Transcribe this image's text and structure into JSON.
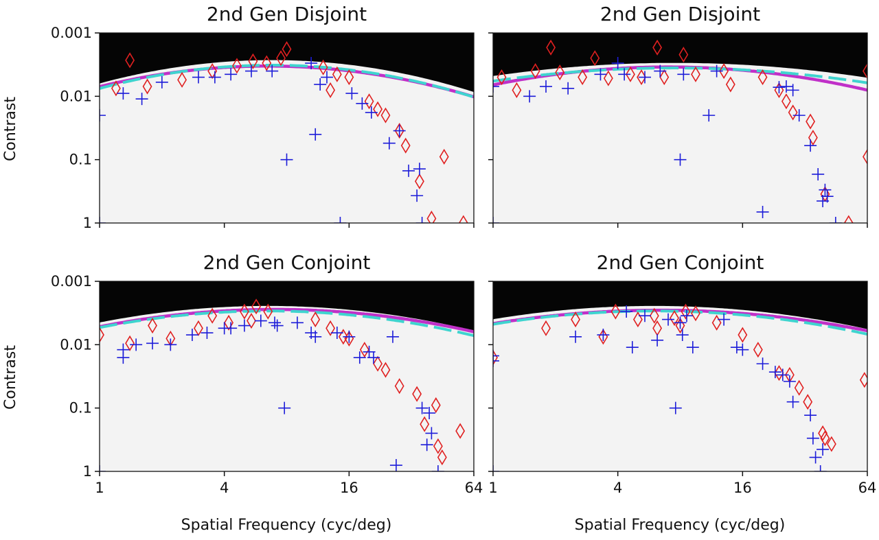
{
  "figure": {
    "ylabel": "Contrast",
    "xlabel": "Spatial Frequency (cyc/deg)"
  },
  "chart_data": [
    {
      "type": "scatter",
      "title": "2nd Gen Disjoint",
      "x_scale": "log2",
      "y_scale": "log10-inverted",
      "xlim": [
        1,
        64
      ],
      "ylim": [
        1,
        0.001
      ],
      "x_ticks": [
        "1",
        "4",
        "16",
        "64"
      ],
      "y_ticks": [
        "0.001",
        "0.01",
        "0.1",
        "1"
      ],
      "background": "estimated contrast sensitivity probability map (white = seen, black = not seen)",
      "series": [
        {
          "marker": "diamond",
          "color": "#e02020",
          "points": [
            [
              1.2,
              0.0075
            ],
            [
              1.4,
              0.0027
            ],
            [
              1.7,
              0.007
            ],
            [
              2.5,
              0.0055
            ],
            [
              3.5,
              0.004
            ],
            [
              4.6,
              0.0033
            ],
            [
              5.5,
              0.0028
            ],
            [
              6.4,
              0.003
            ],
            [
              7.5,
              0.0025
            ],
            [
              8,
              0.0018
            ],
            [
              12,
              0.0035
            ],
            [
              13,
              0.008
            ],
            [
              14,
              0.0045
            ],
            [
              16,
              0.005
            ],
            [
              20,
              0.012
            ],
            [
              22,
              0.016
            ],
            [
              24,
              0.02
            ],
            [
              28,
              0.035
            ],
            [
              30,
              0.06
            ],
            [
              35,
              0.22
            ],
            [
              40,
              0.85
            ],
            [
              46,
              0.09
            ],
            [
              57,
              1.0
            ]
          ]
        },
        {
          "marker": "plus",
          "color": "#1c1cd9",
          "points": [
            [
              1,
              0.02
            ],
            [
              1,
              1.0
            ],
            [
              1.3,
              0.009
            ],
            [
              1.6,
              0.011
            ],
            [
              2,
              0.006
            ],
            [
              3,
              0.005
            ],
            [
              3.6,
              0.005
            ],
            [
              4.3,
              0.0045
            ],
            [
              5.4,
              0.004
            ],
            [
              6.8,
              0.004
            ],
            [
              8,
              0.1
            ],
            [
              10.5,
              0.003
            ],
            [
              11,
              0.04
            ],
            [
              11.6,
              0.0065
            ],
            [
              12.5,
              0.005
            ],
            [
              14.5,
              1.0
            ],
            [
              16.5,
              0.009
            ],
            [
              18.5,
              0.013
            ],
            [
              20.5,
              0.018
            ],
            [
              25,
              0.055
            ],
            [
              28,
              0.035
            ],
            [
              31,
              0.15
            ],
            [
              34,
              0.37
            ],
            [
              35,
              0.14
            ],
            [
              36,
              1.0
            ]
          ]
        }
      ],
      "fits": [
        {
          "name": "solid",
          "color": "#c030c8",
          "style": "solid",
          "peak_freq": 6.5,
          "peak_sens": 300,
          "bandwidth_oct": 5.2,
          "truncation_log": 1.0
        },
        {
          "name": "dashed",
          "color": "#3fd4cf",
          "style": "dashed",
          "peak_freq": 6.8,
          "peak_sens": 310,
          "bandwidth_oct": 5.0,
          "truncation_log": 1.05
        }
      ]
    },
    {
      "type": "scatter",
      "title": "2nd Gen Disjoint",
      "x_scale": "log2",
      "y_scale": "log10-inverted",
      "xlim": [
        1,
        64
      ],
      "ylim": [
        1,
        0.001
      ],
      "x_ticks": [
        "1",
        "4",
        "16",
        "64"
      ],
      "y_ticks": [
        "0.001",
        "0.01",
        "0.1",
        "1"
      ],
      "background": "estimated contrast sensitivity probability map (white = seen, black = not seen)",
      "series": [
        {
          "marker": "diamond",
          "color": "#e02020",
          "points": [
            [
              1.1,
              0.005
            ],
            [
              1.3,
              0.008
            ],
            [
              1.6,
              0.004
            ],
            [
              1.9,
              0.0017
            ],
            [
              2.1,
              0.0042
            ],
            [
              2.7,
              0.005
            ],
            [
              3.1,
              0.0025
            ],
            [
              3.6,
              0.0052
            ],
            [
              4.6,
              0.0045
            ],
            [
              5.2,
              0.005
            ],
            [
              6.2,
              0.0017
            ],
            [
              6.7,
              0.005
            ],
            [
              8.3,
              0.0022
            ],
            [
              9.5,
              0.0045
            ],
            [
              13,
              0.004
            ],
            [
              14,
              0.0065
            ],
            [
              20,
              0.005
            ],
            [
              24,
              0.008
            ],
            [
              26,
              0.012
            ],
            [
              28,
              0.018
            ],
            [
              34,
              0.025
            ],
            [
              35,
              0.045
            ],
            [
              40,
              0.35
            ],
            [
              52,
              1.0
            ],
            [
              64,
              0.004
            ],
            [
              64,
              0.09
            ]
          ]
        },
        {
          "marker": "plus",
          "color": "#1c1cd9",
          "points": [
            [
              1,
              0.007
            ],
            [
              1,
              1.0
            ],
            [
              1.5,
              0.01
            ],
            [
              1.8,
              0.007
            ],
            [
              2.3,
              0.0075
            ],
            [
              3.3,
              0.0045
            ],
            [
              4,
              0.003
            ],
            [
              4.3,
              0.0045
            ],
            [
              5.4,
              0.005
            ],
            [
              6.4,
              0.004
            ],
            [
              8,
              0.1
            ],
            [
              8.3,
              0.0045
            ],
            [
              11,
              0.02
            ],
            [
              12,
              0.004
            ],
            [
              20,
              0.67
            ],
            [
              24,
              0.0072
            ],
            [
              26,
              0.007
            ],
            [
              28,
              0.008
            ],
            [
              30,
              0.02
            ],
            [
              34,
              0.06
            ],
            [
              37,
              0.17
            ],
            [
              39,
              0.45
            ],
            [
              40,
              0.3
            ],
            [
              41,
              0.38
            ],
            [
              45,
              1.0
            ]
          ]
        }
      ],
      "fits": [
        {
          "name": "solid",
          "color": "#c030c8",
          "style": "solid",
          "peak_freq": 7.0,
          "peak_sens": 290,
          "bandwidth_oct": 5.8,
          "truncation_log": 0.95
        },
        {
          "name": "dashed",
          "color": "#3fd4cf",
          "style": "dashed",
          "peak_freq": 7.5,
          "peak_sens": 280,
          "bandwidth_oct": 7.0,
          "truncation_log": 1.15
        }
      ]
    },
    {
      "type": "scatter",
      "title": "2nd Gen Conjoint",
      "x_scale": "log2",
      "y_scale": "log10-inverted",
      "xlim": [
        1,
        64
      ],
      "ylim": [
        1,
        0.001
      ],
      "x_ticks": [
        "1",
        "4",
        "16",
        "64"
      ],
      "y_ticks": [
        "0.001",
        "0.01",
        "0.1",
        "1"
      ],
      "background": "estimated contrast sensitivity probability map (white = seen, black = not seen)",
      "series": [
        {
          "marker": "diamond",
          "color": "#e02020",
          "points": [
            [
              1,
              0.007
            ],
            [
              1.4,
              0.0095
            ],
            [
              1.8,
              0.005
            ],
            [
              2.2,
              0.008
            ],
            [
              3,
              0.0055
            ],
            [
              3.5,
              0.0035
            ],
            [
              4.2,
              0.0045
            ],
            [
              5,
              0.003
            ],
            [
              5.4,
              0.0042
            ],
            [
              5.7,
              0.0025
            ],
            [
              6.5,
              0.003
            ],
            [
              11,
              0.004
            ],
            [
              13,
              0.0055
            ],
            [
              15,
              0.0075
            ],
            [
              16,
              0.008
            ],
            [
              19,
              0.012
            ],
            [
              22,
              0.02
            ],
            [
              24,
              0.025
            ],
            [
              28,
              0.045
            ],
            [
              34,
              0.06
            ],
            [
              37,
              0.18
            ],
            [
              42,
              0.09
            ],
            [
              43,
              0.4
            ],
            [
              45,
              0.6
            ],
            [
              55,
              0.23
            ]
          ]
        },
        {
          "marker": "plus",
          "color": "#1c1cd9",
          "points": [
            [
              1,
              1.0
            ],
            [
              1.3,
              0.012
            ],
            [
              1.3,
              0.016
            ],
            [
              1.5,
              0.01
            ],
            [
              1.8,
              0.0095
            ],
            [
              2.2,
              0.01
            ],
            [
              2.8,
              0.007
            ],
            [
              3.3,
              0.0065
            ],
            [
              4,
              0.0055
            ],
            [
              4.3,
              0.0055
            ],
            [
              5,
              0.005
            ],
            [
              6,
              0.0042
            ],
            [
              7,
              0.0045
            ],
            [
              7.2,
              0.005
            ],
            [
              7.8,
              0.1
            ],
            [
              9,
              0.0045
            ],
            [
              10.5,
              0.0065
            ],
            [
              11,
              0.0075
            ],
            [
              14,
              0.0065
            ],
            [
              16,
              0.0075
            ],
            [
              18,
              0.016
            ],
            [
              20,
              0.013
            ],
            [
              21,
              0.016
            ],
            [
              26,
              0.0075
            ],
            [
              27,
              0.8
            ],
            [
              36,
              0.1
            ],
            [
              38,
              0.38
            ],
            [
              39,
              0.12
            ],
            [
              40,
              0.25
            ],
            [
              43,
              1.0
            ]
          ]
        }
      ],
      "fits": [
        {
          "name": "solid",
          "color": "#c030c8",
          "style": "solid",
          "peak_freq": 7.0,
          "peak_sens": 360,
          "bandwidth_oct": 5.9,
          "truncation_log": 0.75
        },
        {
          "name": "dashed",
          "color": "#3fd4cf",
          "style": "dashed",
          "peak_freq": 6.5,
          "peak_sens": 340,
          "bandwidth_oct": 5.8,
          "truncation_log": 0.95
        }
      ]
    },
    {
      "type": "scatter",
      "title": "2nd Gen Conjoint",
      "x_scale": "log2",
      "y_scale": "log10-inverted",
      "xlim": [
        1,
        64
      ],
      "ylim": [
        1,
        0.001
      ],
      "x_ticks": [
        "1",
        "4",
        "16",
        "64"
      ],
      "y_ticks": [
        "0.001",
        "0.01",
        "0.1",
        "1"
      ],
      "background": "estimated contrast sensitivity probability map (white = seen, black = not seen)",
      "series": [
        {
          "marker": "diamond",
          "color": "#e02020",
          "points": [
            [
              1,
              0.016
            ],
            [
              1.8,
              0.0055
            ],
            [
              2.5,
              0.004
            ],
            [
              3.4,
              0.0075
            ],
            [
              3.9,
              0.003
            ],
            [
              5,
              0.004
            ],
            [
              6,
              0.0035
            ],
            [
              6.2,
              0.0055
            ],
            [
              7.5,
              0.0038
            ],
            [
              8,
              0.005
            ],
            [
              8.5,
              0.003
            ],
            [
              9.5,
              0.0032
            ],
            [
              12,
              0.0045
            ],
            [
              16,
              0.007
            ],
            [
              19,
              0.012
            ],
            [
              24,
              0.028
            ],
            [
              27,
              0.03
            ],
            [
              30,
              0.048
            ],
            [
              33,
              0.08
            ],
            [
              39,
              0.25
            ],
            [
              40,
              0.3
            ],
            [
              43,
              0.37
            ],
            [
              62,
              0.036
            ]
          ]
        },
        {
          "marker": "plus",
          "color": "#1c1cd9",
          "points": [
            [
              1,
              0.015
            ],
            [
              1,
              0.018
            ],
            [
              1,
              1.0
            ],
            [
              2.5,
              0.0075
            ],
            [
              3.4,
              0.007
            ],
            [
              4.4,
              0.003
            ],
            [
              4.7,
              0.011
            ],
            [
              5.4,
              0.0035
            ],
            [
              6.2,
              0.0085
            ],
            [
              7,
              0.004
            ],
            [
              7.6,
              0.1
            ],
            [
              8,
              0.0045
            ],
            [
              8.2,
              0.007
            ],
            [
              8.6,
              0.0035
            ],
            [
              9.2,
              0.011
            ],
            [
              13,
              0.004
            ],
            [
              15,
              0.011
            ],
            [
              16,
              0.012
            ],
            [
              20,
              0.02
            ],
            [
              23,
              0.027
            ],
            [
              25,
              0.03
            ],
            [
              27,
              0.038
            ],
            [
              28,
              0.08
            ],
            [
              34,
              0.13
            ],
            [
              35,
              0.3
            ],
            [
              36,
              0.6
            ],
            [
              38,
              1.0
            ],
            [
              39,
              0.45
            ]
          ]
        }
      ],
      "fits": [
        {
          "name": "solid",
          "color": "#c030c8",
          "style": "solid",
          "peak_freq": 6.4,
          "peak_sens": 350,
          "bandwidth_oct": 6.4,
          "truncation_log": 0.95
        },
        {
          "name": "dashed",
          "color": "#3fd4cf",
          "style": "dashed",
          "peak_freq": 6.0,
          "peak_sens": 340,
          "bandwidth_oct": 6.2,
          "truncation_log": 1.05
        }
      ]
    }
  ]
}
